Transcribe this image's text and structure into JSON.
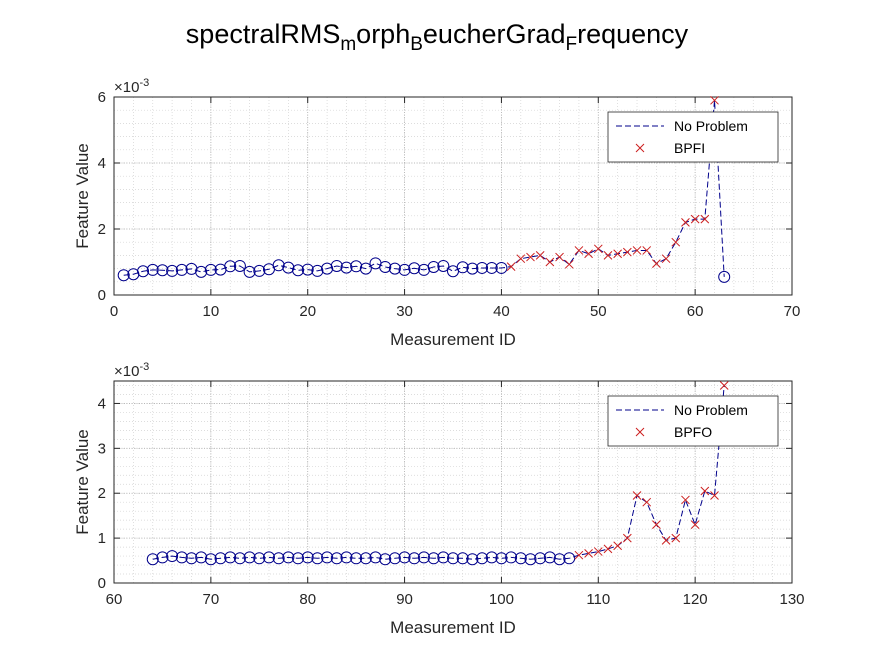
{
  "chart_data": {
    "title": {
      "parts": [
        {
          "text": "spectralRMS",
          "sub": false
        },
        {
          "text": "m",
          "sub": true
        },
        {
          "text": "orph",
          "sub": false
        },
        {
          "text": "B",
          "sub": true
        },
        {
          "text": "eucherGrad",
          "sub": false
        },
        {
          "text": "F",
          "sub": true
        },
        {
          "text": "requency",
          "sub": false
        }
      ]
    },
    "colors": {
      "no_problem": "#00008b",
      "fault": "#cc1f1f",
      "grid": "#b0b0b0",
      "axis": "#262626"
    },
    "plots": [
      {
        "type": "line",
        "xlabel": "Measurement ID",
        "ylabel": "Feature Value",
        "xlim": [
          0,
          70
        ],
        "ylim": [
          0,
          0.006
        ],
        "xticks": [
          0,
          10,
          20,
          30,
          40,
          50,
          60,
          70
        ],
        "yticks": [
          0,
          0.002,
          0.004,
          0.006
        ],
        "ytick_labels": [
          "0",
          "2",
          "4",
          "6"
        ],
        "exponent_label": "×10",
        "exponent_power": "-3",
        "grid": true,
        "legend_position": "top-right",
        "series": [
          {
            "name": "No Problem",
            "marker": "circle",
            "x": [
              1,
              2,
              3,
              4,
              5,
              6,
              7,
              8,
              9,
              10,
              11,
              12,
              13,
              14,
              15,
              16,
              17,
              18,
              19,
              20,
              21,
              22,
              23,
              24,
              25,
              26,
              27,
              28,
              29,
              30,
              31,
              32,
              33,
              34,
              35,
              36,
              37,
              38,
              39,
              40,
              41,
              42,
              43,
              44,
              45,
              46,
              47,
              48,
              49,
              50,
              51,
              52,
              53,
              54,
              55,
              56,
              57,
              58,
              59,
              60,
              61,
              62,
              63
            ],
            "y": [
              0.0006,
              0.00063,
              0.00072,
              0.00076,
              0.00075,
              0.00073,
              0.00076,
              0.00079,
              0.0007,
              0.00076,
              0.00077,
              0.00087,
              0.00088,
              0.0007,
              0.00073,
              0.00078,
              0.0009,
              0.00083,
              0.00075,
              0.00077,
              0.00073,
              0.0008,
              0.00088,
              0.00083,
              0.00087,
              0.0008,
              0.00096,
              0.00085,
              0.0008,
              0.00076,
              0.00081,
              0.00076,
              0.00085,
              0.00088,
              0.00072,
              0.00084,
              0.0008,
              0.00082,
              0.00082,
              0.00082,
              0.00086,
              0.0011,
              0.00115,
              0.0012,
              0.001,
              0.00115,
              0.00093,
              0.00135,
              0.00125,
              0.0014,
              0.0012,
              0.00125,
              0.0013,
              0.00135,
              0.00135,
              0.00095,
              0.0011,
              0.0016,
              0.0022,
              0.0023,
              0.0023,
              0.0059,
              0.00055
            ]
          },
          {
            "name": "BPFI",
            "marker": "x",
            "x": [
              41,
              42,
              43,
              44,
              45,
              46,
              47,
              48,
              49,
              50,
              51,
              52,
              53,
              54,
              55,
              56,
              57,
              58,
              59,
              60,
              61,
              62
            ],
            "y": [
              0.00086,
              0.0011,
              0.00115,
              0.0012,
              0.001,
              0.00115,
              0.00093,
              0.00135,
              0.00125,
              0.0014,
              0.0012,
              0.00125,
              0.0013,
              0.00135,
              0.00135,
              0.00095,
              0.0011,
              0.0016,
              0.0022,
              0.0023,
              0.0023,
              0.0059
            ]
          }
        ],
        "circle_x": [
          1,
          2,
          3,
          4,
          5,
          6,
          7,
          8,
          9,
          10,
          11,
          12,
          13,
          14,
          15,
          16,
          17,
          18,
          19,
          20,
          21,
          22,
          23,
          24,
          25,
          26,
          27,
          28,
          29,
          30,
          31,
          32,
          33,
          34,
          35,
          36,
          37,
          38,
          39,
          40,
          63
        ],
        "circle_y": [
          0.0006,
          0.00063,
          0.00072,
          0.00076,
          0.00075,
          0.00073,
          0.00076,
          0.00079,
          0.0007,
          0.00076,
          0.00077,
          0.00087,
          0.00088,
          0.0007,
          0.00073,
          0.00078,
          0.0009,
          0.00083,
          0.00075,
          0.00077,
          0.00073,
          0.0008,
          0.00088,
          0.00083,
          0.00087,
          0.0008,
          0.00096,
          0.00085,
          0.0008,
          0.00076,
          0.00081,
          0.00076,
          0.00085,
          0.00088,
          0.00072,
          0.00084,
          0.0008,
          0.00082,
          0.00082,
          0.00082,
          0.00055
        ]
      },
      {
        "type": "line",
        "xlabel": "Measurement ID",
        "ylabel": "Feature Value",
        "xlim": [
          60,
          130
        ],
        "ylim": [
          0,
          0.0045
        ],
        "xticks": [
          60,
          70,
          80,
          90,
          100,
          110,
          120,
          130
        ],
        "yticks": [
          0,
          0.001,
          0.002,
          0.003,
          0.004
        ],
        "ytick_labels": [
          "0",
          "1",
          "2",
          "3",
          "4"
        ],
        "exponent_label": "×10",
        "exponent_power": "-3",
        "grid": true,
        "legend_position": "top-right",
        "series": [
          {
            "name": "No Problem",
            "marker": "circle",
            "x": [
              64,
              65,
              66,
              67,
              68,
              69,
              70,
              71,
              72,
              73,
              74,
              75,
              76,
              77,
              78,
              79,
              80,
              81,
              82,
              83,
              84,
              85,
              86,
              87,
              88,
              89,
              90,
              91,
              92,
              93,
              94,
              95,
              96,
              97,
              98,
              99,
              100,
              101,
              102,
              103,
              104,
              105,
              106,
              107,
              108,
              109,
              110,
              111,
              112,
              113,
              114,
              115,
              116,
              117,
              118,
              119,
              120,
              121,
              122,
              123
            ],
            "y": [
              0.00053,
              0.00057,
              0.0006,
              0.00057,
              0.00055,
              0.00057,
              0.00053,
              0.00055,
              0.00057,
              0.00055,
              0.00057,
              0.00055,
              0.00057,
              0.00055,
              0.00057,
              0.00055,
              0.00057,
              0.00055,
              0.00057,
              0.00055,
              0.00057,
              0.00055,
              0.00055,
              0.00057,
              0.00053,
              0.00055,
              0.00057,
              0.00055,
              0.00057,
              0.00055,
              0.00057,
              0.00055,
              0.00055,
              0.00053,
              0.00055,
              0.00057,
              0.00055,
              0.00057,
              0.00055,
              0.00053,
              0.00055,
              0.00057,
              0.00053,
              0.00055,
              0.00062,
              0.00066,
              0.0007,
              0.00076,
              0.00083,
              0.001,
              0.00195,
              0.0018,
              0.0013,
              0.00095,
              0.001,
              0.00185,
              0.0013,
              0.00205,
              0.00195,
              0.0044
            ]
          },
          {
            "name": "BPFO",
            "marker": "x",
            "x": [
              108,
              109,
              110,
              111,
              112,
              113,
              114,
              115,
              116,
              117,
              118,
              119,
              120,
              121,
              122,
              123
            ],
            "y": [
              0.00062,
              0.00066,
              0.0007,
              0.00076,
              0.00083,
              0.001,
              0.00195,
              0.0018,
              0.0013,
              0.00095,
              0.001,
              0.00185,
              0.0013,
              0.00205,
              0.00195,
              0.0044
            ]
          }
        ],
        "circle_x": [
          64,
          65,
          66,
          67,
          68,
          69,
          70,
          71,
          72,
          73,
          74,
          75,
          76,
          77,
          78,
          79,
          80,
          81,
          82,
          83,
          84,
          85,
          86,
          87,
          88,
          89,
          90,
          91,
          92,
          93,
          94,
          95,
          96,
          97,
          98,
          99,
          100,
          101,
          102,
          103,
          104,
          105,
          106,
          107
        ],
        "circle_y": [
          0.00053,
          0.00057,
          0.0006,
          0.00057,
          0.00055,
          0.00057,
          0.00053,
          0.00055,
          0.00057,
          0.00055,
          0.00057,
          0.00055,
          0.00057,
          0.00055,
          0.00057,
          0.00055,
          0.00057,
          0.00055,
          0.00057,
          0.00055,
          0.00057,
          0.00055,
          0.00055,
          0.00057,
          0.00053,
          0.00055,
          0.00057,
          0.00055,
          0.00057,
          0.00055,
          0.00057,
          0.00055,
          0.00055,
          0.00053,
          0.00055,
          0.00057,
          0.00055,
          0.00057,
          0.00055,
          0.00053,
          0.00055,
          0.00057,
          0.00053,
          0.00055
        ]
      }
    ]
  }
}
